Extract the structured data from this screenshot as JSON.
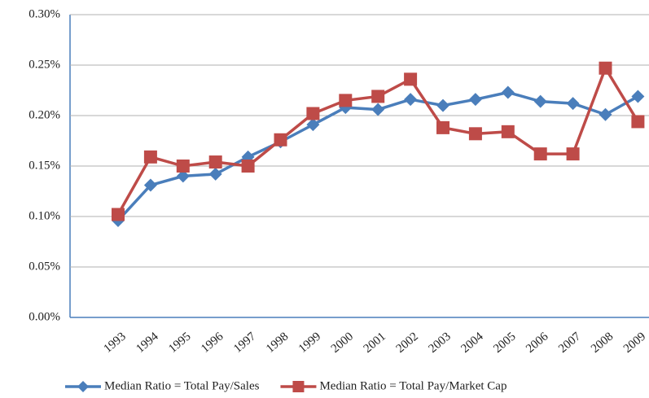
{
  "chart_data": {
    "type": "line",
    "categories": [
      "1993",
      "1994",
      "1995",
      "1996",
      "1997",
      "1998",
      "1999",
      "2000",
      "2001",
      "2002",
      "2003",
      "2004",
      "2005",
      "2006",
      "2007",
      "2008",
      "2009"
    ],
    "series": [
      {
        "name": "Median Ratio = Total Pay/Sales",
        "color": "#4a7ebb",
        "marker": "diamond",
        "values": [
          0.096,
          0.131,
          0.14,
          0.142,
          0.159,
          0.174,
          0.191,
          0.208,
          0.206,
          0.216,
          0.21,
          0.216,
          0.223,
          0.214,
          0.212,
          0.201,
          0.219
        ]
      },
      {
        "name": "Median Ratio = Total Pay/Market Cap",
        "color": "#be4b48",
        "marker": "square",
        "values": [
          0.102,
          0.159,
          0.15,
          0.154,
          0.15,
          0.176,
          0.202,
          0.215,
          0.219,
          0.236,
          0.188,
          0.182,
          0.184,
          0.162,
          0.162,
          0.247,
          0.194
        ]
      }
    ],
    "ylim": [
      0,
      0.3
    ],
    "yticks": [
      {
        "value": 0,
        "label": "0.00%"
      },
      {
        "value": 0.05,
        "label": "0.05%"
      },
      {
        "value": 0.1,
        "label": "0.10%"
      },
      {
        "value": 0.15,
        "label": "0.15%"
      },
      {
        "value": 0.2,
        "label": "0.20%"
      },
      {
        "value": 0.25,
        "label": "0.25%"
      },
      {
        "value": 0.3,
        "label": "0.30%"
      }
    ],
    "grid": true,
    "legend": "bottom"
  }
}
